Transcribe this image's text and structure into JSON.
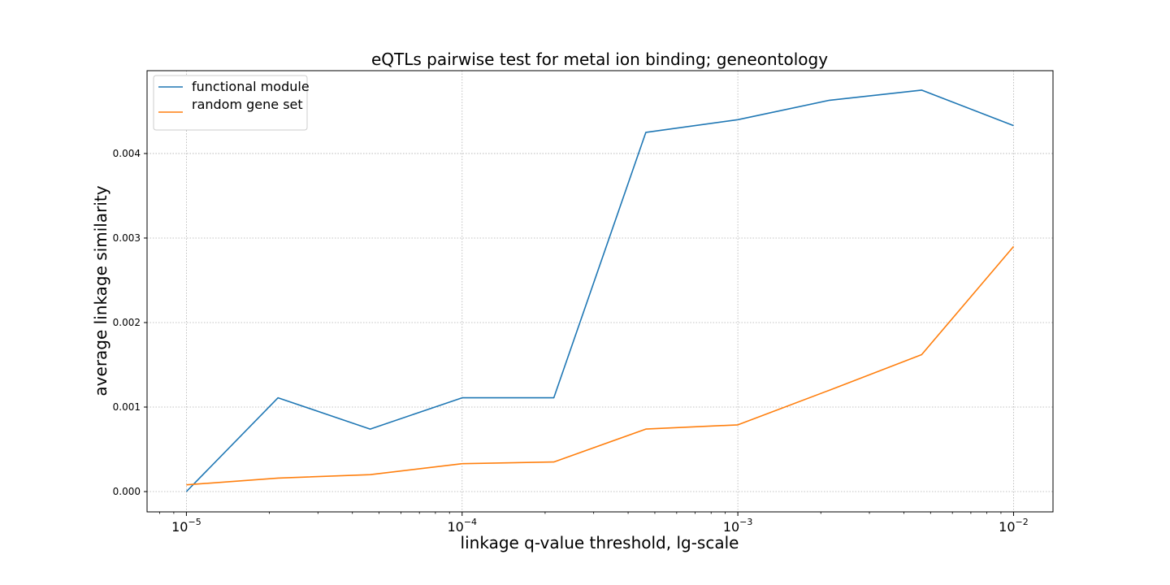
{
  "chart_data": {
    "type": "line",
    "title": "eQTLs pairwise test for metal ion binding; geneontology",
    "xlabel": "linkage q-value threshold, lg-scale",
    "ylabel": "average linkage similarity",
    "xscale": "log",
    "xlim": [
      7.2e-06,
      0.0139
    ],
    "ylim": [
      -0.00024,
      0.00498
    ],
    "x": [
      1e-05,
      2.15e-05,
      4.64e-05,
      0.0001,
      0.000215,
      0.000464,
      0.001,
      0.00215,
      0.00464,
      0.01
    ],
    "series": [
      {
        "name": "functional module",
        "color": "#1f77b4",
        "values": [
          0.0,
          0.00111,
          0.00074,
          0.00111,
          0.00111,
          0.00425,
          0.0044,
          0.00463,
          0.00475,
          0.00433
        ]
      },
      {
        "name": "random gene set",
        "color": "#ff7f0e",
        "values": [
          8e-05,
          0.00016,
          0.0002,
          0.00033,
          0.00035,
          0.00074,
          0.00079,
          0.0012,
          0.00162,
          0.0029
        ]
      }
    ],
    "yticks": [
      0.0,
      0.001,
      0.002,
      0.003,
      0.004
    ],
    "ytick_labels": [
      "0.000",
      "0.001",
      "0.002",
      "0.003",
      "0.004"
    ],
    "xticks": [
      {
        "value": 1e-05,
        "base": "10",
        "exp": "−5"
      },
      {
        "value": 0.0001,
        "base": "10",
        "exp": "−4"
      },
      {
        "value": 0.001,
        "base": "10",
        "exp": "−3"
      },
      {
        "value": 0.01,
        "base": "10",
        "exp": "−2"
      }
    ],
    "grid": true,
    "legend_position": "top-left"
  }
}
